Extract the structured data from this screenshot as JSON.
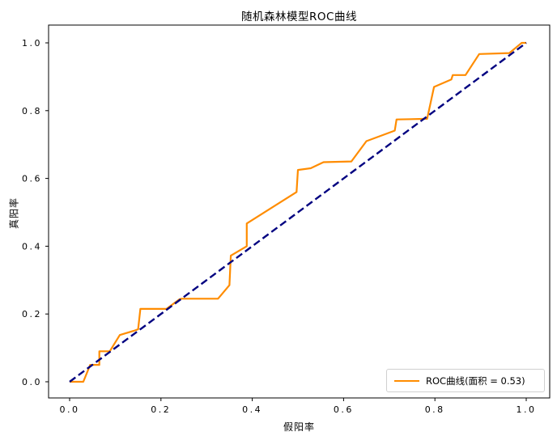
{
  "chart_data": {
    "type": "line",
    "title": "随机森林模型ROC曲线",
    "xlabel": "假阳率",
    "ylabel": "真阳率",
    "xlim": [
      0,
      1
    ],
    "ylim": [
      0,
      1
    ],
    "axis_margin": 0.05,
    "grid": false,
    "x_ticks": [
      0.0,
      0.2,
      0.4,
      0.6,
      0.8,
      1.0
    ],
    "y_ticks": [
      0.0,
      0.2,
      0.4,
      0.6,
      0.8,
      1.0
    ],
    "colors": {
      "roc_curve": "#FF8C00",
      "reference_diagonal": "#000080",
      "frame": "#000000"
    },
    "series": [
      {
        "id": "roc-curve",
        "style": "solid",
        "color": "#FF8C00",
        "points": [
          [
            0.0,
            0.0
          ],
          [
            0.03,
            0.0
          ],
          [
            0.045,
            0.05
          ],
          [
            0.065,
            0.05
          ],
          [
            0.065,
            0.09
          ],
          [
            0.088,
            0.09
          ],
          [
            0.11,
            0.138
          ],
          [
            0.14,
            0.15
          ],
          [
            0.15,
            0.155
          ],
          [
            0.155,
            0.215
          ],
          [
            0.212,
            0.215
          ],
          [
            0.24,
            0.243
          ],
          [
            0.245,
            0.245
          ],
          [
            0.325,
            0.245
          ],
          [
            0.35,
            0.285
          ],
          [
            0.353,
            0.372
          ],
          [
            0.388,
            0.4
          ],
          [
            0.388,
            0.467
          ],
          [
            0.497,
            0.56
          ],
          [
            0.5,
            0.625
          ],
          [
            0.528,
            0.63
          ],
          [
            0.556,
            0.648
          ],
          [
            0.617,
            0.65
          ],
          [
            0.65,
            0.71
          ],
          [
            0.712,
            0.741
          ],
          [
            0.716,
            0.774
          ],
          [
            0.783,
            0.776
          ],
          [
            0.798,
            0.87
          ],
          [
            0.836,
            0.892
          ],
          [
            0.839,
            0.905
          ],
          [
            0.867,
            0.905
          ],
          [
            0.897,
            0.967
          ],
          [
            0.963,
            0.97
          ],
          [
            0.99,
            1.0
          ],
          [
            1.0,
            1.0
          ]
        ]
      },
      {
        "id": "reference-diagonal",
        "style": "dashed",
        "color": "#000080",
        "points": [
          [
            0.0,
            0.0
          ],
          [
            1.0,
            1.0
          ]
        ]
      }
    ],
    "legend": {
      "position": "lower right",
      "entries": [
        {
          "label": "ROC曲线(面积 = 0.53)",
          "color": "#FF8C00",
          "style": "solid"
        }
      ]
    }
  }
}
